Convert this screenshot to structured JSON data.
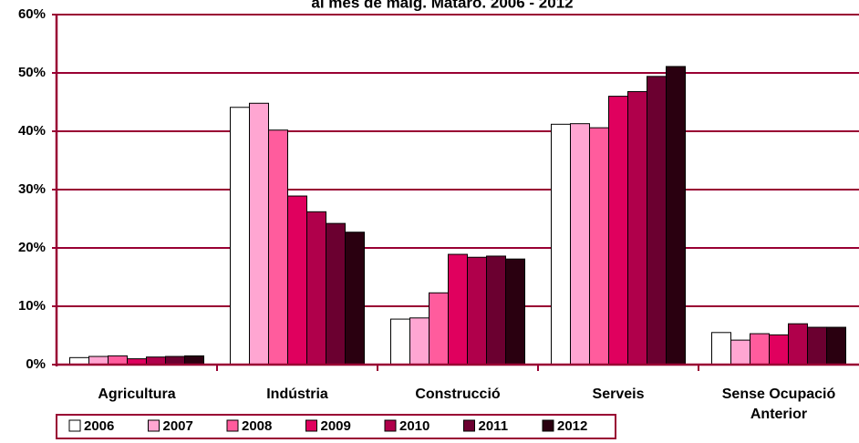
{
  "chart_data": {
    "type": "bar",
    "title": "al mes de maig. Mataró. 2006 - 2012",
    "categories": [
      "Agricultura",
      "Indústria",
      "Construcció",
      "Serveis",
      "Sense Ocupació Anterior"
    ],
    "series": [
      {
        "name": "2006",
        "color": "#ffffff",
        "values": [
          1.2,
          44.1,
          7.8,
          41.2,
          5.5
        ]
      },
      {
        "name": "2007",
        "color": "#ffa6d2",
        "values": [
          1.4,
          44.8,
          8.0,
          41.3,
          4.2
        ]
      },
      {
        "name": "2008",
        "color": "#ff5c9d",
        "values": [
          1.5,
          40.2,
          12.3,
          40.6,
          5.3
        ]
      },
      {
        "name": "2009",
        "color": "#e0005e",
        "values": [
          1.0,
          28.9,
          18.9,
          46.0,
          5.1
        ]
      },
      {
        "name": "2010",
        "color": "#b0004b",
        "values": [
          1.3,
          26.2,
          18.4,
          46.8,
          7.0
        ]
      },
      {
        "name": "2011",
        "color": "#6b0030",
        "values": [
          1.4,
          24.2,
          18.6,
          49.4,
          6.4
        ]
      },
      {
        "name": "2012",
        "color": "#2a0010",
        "values": [
          1.5,
          22.7,
          18.1,
          51.1,
          6.4
        ]
      }
    ],
    "ylim": [
      0,
      60
    ],
    "yticks": [
      {
        "value": 0,
        "label": "0%"
      },
      {
        "value": 10,
        "label": "10%"
      },
      {
        "value": 20,
        "label": "20%"
      },
      {
        "value": 30,
        "label": "30%"
      },
      {
        "value": 40,
        "label": "40%"
      },
      {
        "value": 50,
        "label": "50%"
      },
      {
        "value": 60,
        "label": "60%"
      }
    ],
    "grid": true
  }
}
